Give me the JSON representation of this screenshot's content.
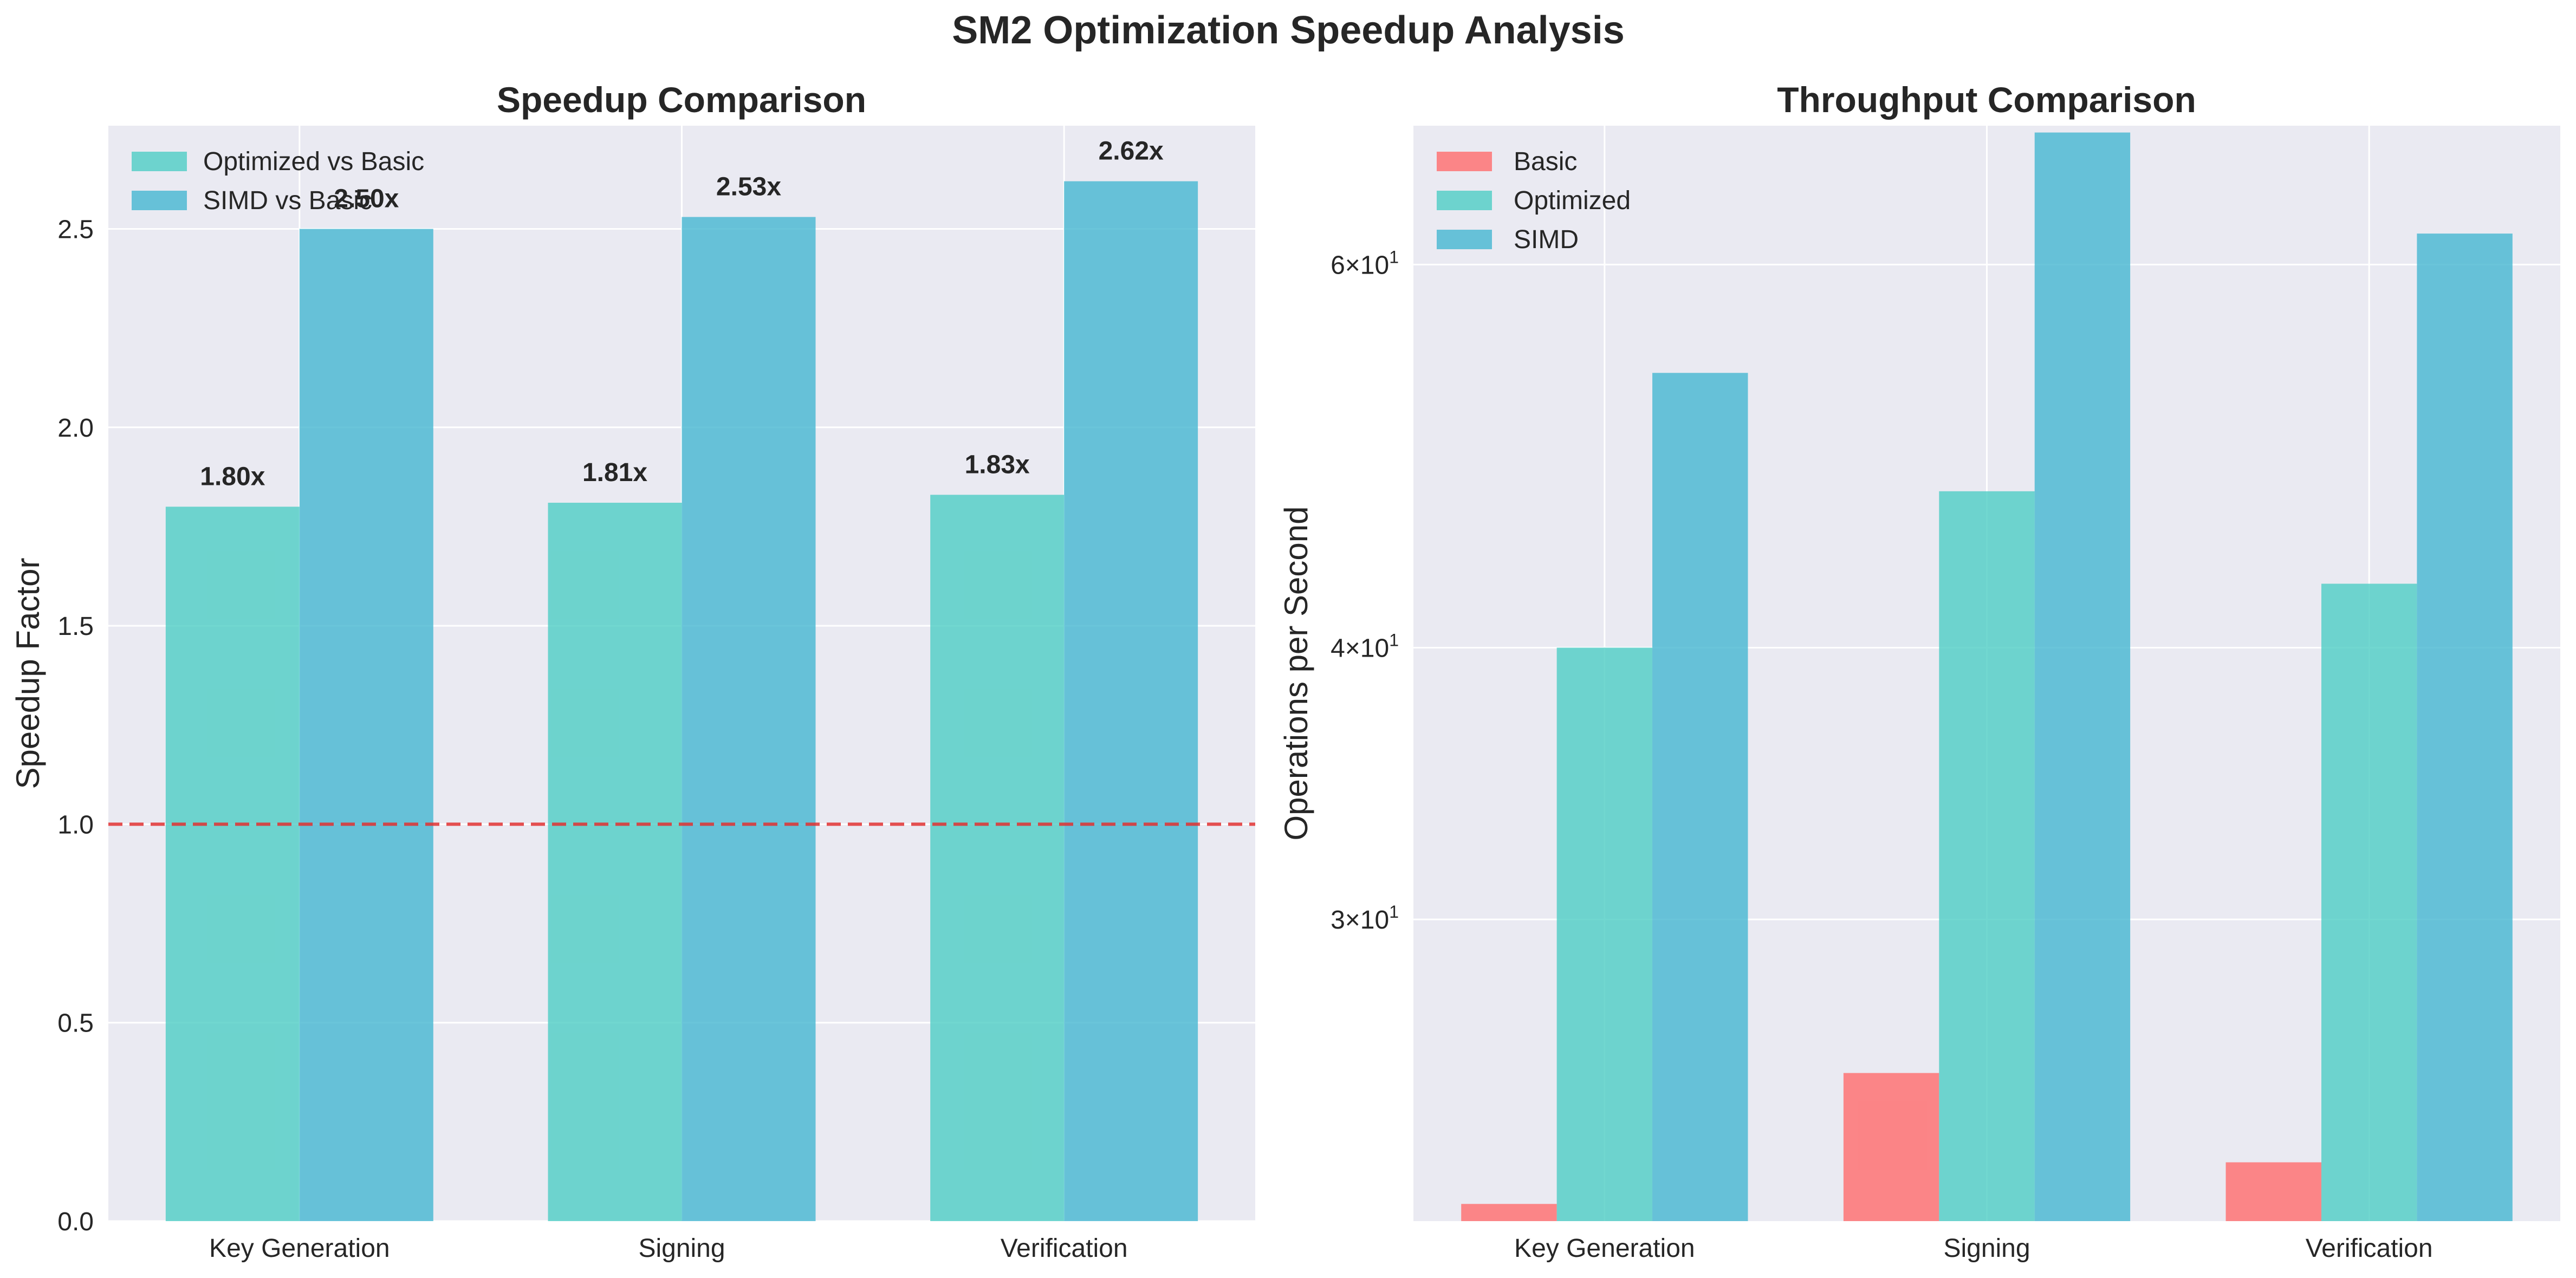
{
  "title": "SM2 Optimization Speedup Analysis",
  "colors": {
    "basic": "#FF6B6B",
    "optimized": "#4ECDC4",
    "simd": "#45B7D1",
    "panel_bg": "#EAEAF2",
    "reference_line": "#E03030"
  },
  "chart_data": [
    {
      "type": "bar",
      "title": "Speedup Comparison",
      "xlabel": "",
      "ylabel": "Speedup Factor",
      "categories": [
        "Key Generation",
        "Signing",
        "Verification"
      ],
      "series": [
        {
          "name": "Optimized vs Basic",
          "values": [
            1.8,
            1.81,
            1.83
          ],
          "labels": [
            "1.80x",
            "1.81x",
            "1.83x"
          ]
        },
        {
          "name": "SIMD vs Basic",
          "values": [
            2.5,
            2.53,
            2.62
          ],
          "labels": [
            "2.50x",
            "2.53x",
            "2.62x"
          ]
        }
      ],
      "ylim": [
        0,
        2.76
      ],
      "yticks": [
        0.0,
        0.5,
        1.0,
        1.5,
        2.0,
        2.5
      ],
      "ytick_labels": [
        "0.0",
        "0.5",
        "1.0",
        "1.5",
        "2.0",
        "2.5"
      ],
      "reference_line": {
        "y": 1.0,
        "style": "dashed"
      },
      "grid": true,
      "legend": "top-left"
    },
    {
      "type": "bar",
      "title": "Throughput Comparison",
      "xlabel": "",
      "ylabel": "Operations per Second",
      "yscale": "log",
      "categories": [
        "Key Generation",
        "Signing",
        "Verification"
      ],
      "series": [
        {
          "name": "Basic",
          "values": [
            22.2,
            25.5,
            23.2
          ]
        },
        {
          "name": "Optimized",
          "values": [
            40.0,
            47.2,
            42.8
          ]
        },
        {
          "name": "SIMD",
          "values": [
            53.5,
            69.0,
            62.0
          ]
        }
      ],
      "ylim": [
        21.8,
        69.5
      ],
      "yticks": [
        30,
        40,
        60
      ],
      "ytick_labels": [
        {
          "base": "3×10",
          "exp": "1"
        },
        {
          "base": "4×10",
          "exp": "1"
        },
        {
          "base": "6×10",
          "exp": "1"
        }
      ],
      "grid": true,
      "legend": "top-left"
    }
  ]
}
